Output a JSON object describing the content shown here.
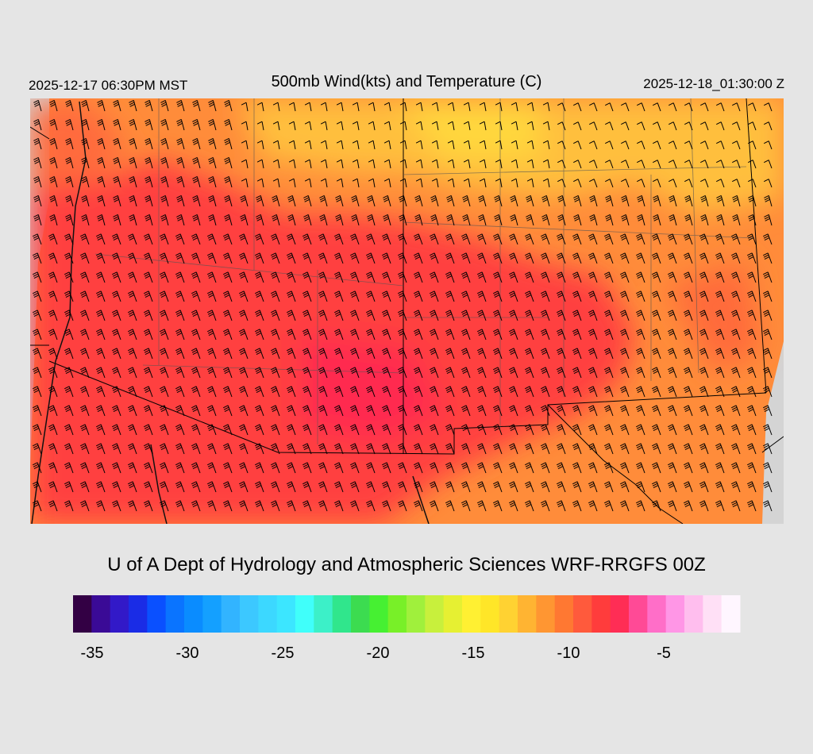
{
  "header": {
    "local_time": "2025-12-17 06:30PM MST",
    "title": "500mb Wind(kts) and Temperature (C)",
    "utc_time": "2025-12-18_01:30:00 Z"
  },
  "footer": {
    "credit": "U of A Dept of Hydrology and Atmospheric Sciences WRF-RRGFS 00Z"
  },
  "colorbar": {
    "colors": [
      "#330044",
      "#3a0a96",
      "#3219c8",
      "#1a2ce6",
      "#0a50ff",
      "#0a74ff",
      "#0a8cff",
      "#14a0ff",
      "#32b4ff",
      "#3cc8ff",
      "#3cd8ff",
      "#3ce6ff",
      "#40fffa",
      "#3cf0c8",
      "#30e68c",
      "#3cdc50",
      "#46f032",
      "#78f028",
      "#a0f03c",
      "#c8f03c",
      "#e6f032",
      "#fff032",
      "#ffe628",
      "#ffd232",
      "#ffb432",
      "#ff9632",
      "#ff7832",
      "#ff5a3c",
      "#ff3c3c",
      "#ff2d55",
      "#ff4a96",
      "#ff6ec8",
      "#ff96e6",
      "#ffbeee",
      "#ffe0f6",
      "#fff6ff"
    ],
    "tick_labels": [
      "-35",
      "-30",
      "-25",
      "-20",
      "-15",
      "-10",
      "-5"
    ],
    "tick_values": [
      -35,
      -30,
      -25,
      -20,
      -15,
      -10,
      -5
    ],
    "min": -36,
    "max": -1
  },
  "palette": {
    "cold_pool": "#ff3d3d",
    "warm_orange": "#ff9a3c",
    "yellow": "#ffc23a",
    "deep_red": "#ff2c4a",
    "background": "#e5e5e5"
  }
}
